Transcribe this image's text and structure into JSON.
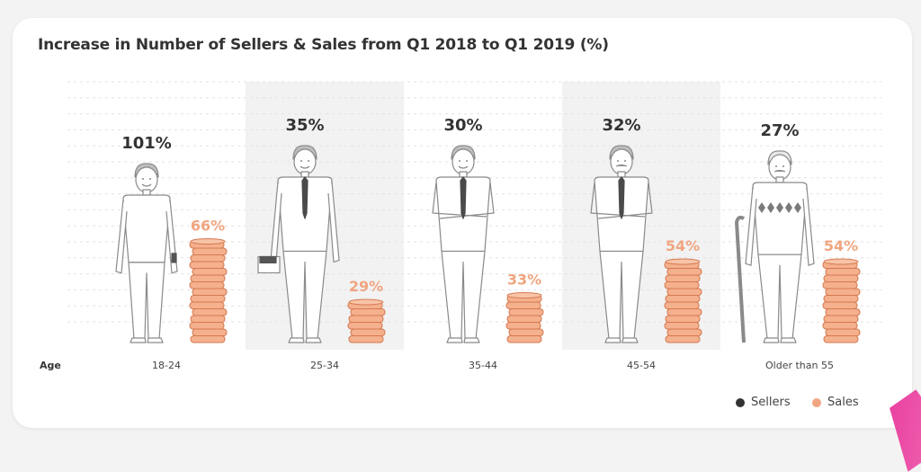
{
  "title": "Increase in Number of Sellers & Sales from Q1 2018 to Q1 2019 (%)",
  "axis_label": "Age",
  "legend": {
    "sellers_label": "Sellers",
    "sales_label": "Sales"
  },
  "colors": {
    "sellers": "#333333",
    "sales": "#f0a580",
    "coin_fill": "#f5b08d",
    "coin_stroke": "#d47a52",
    "band": "#f2f2f2"
  },
  "chart_data": {
    "type": "bar",
    "title": "Increase in Number of Sellers & Sales from Q1 2018 to Q1 2019 (%)",
    "xlabel": "Age",
    "categories": [
      "18-24",
      "25-34",
      "35-44",
      "45-54",
      "Older than 55"
    ],
    "series": [
      {
        "name": "Sellers",
        "values": [
          101,
          35,
          30,
          32,
          27
        ],
        "labels": [
          "101%",
          "35%",
          "30%",
          "32%",
          "27%"
        ]
      },
      {
        "name": "Sales",
        "values": [
          66,
          29,
          33,
          54,
          54
        ],
        "labels": [
          "66%",
          "29%",
          "33%",
          "54%",
          "54%"
        ]
      }
    ],
    "legend_position": "bottom-right"
  }
}
